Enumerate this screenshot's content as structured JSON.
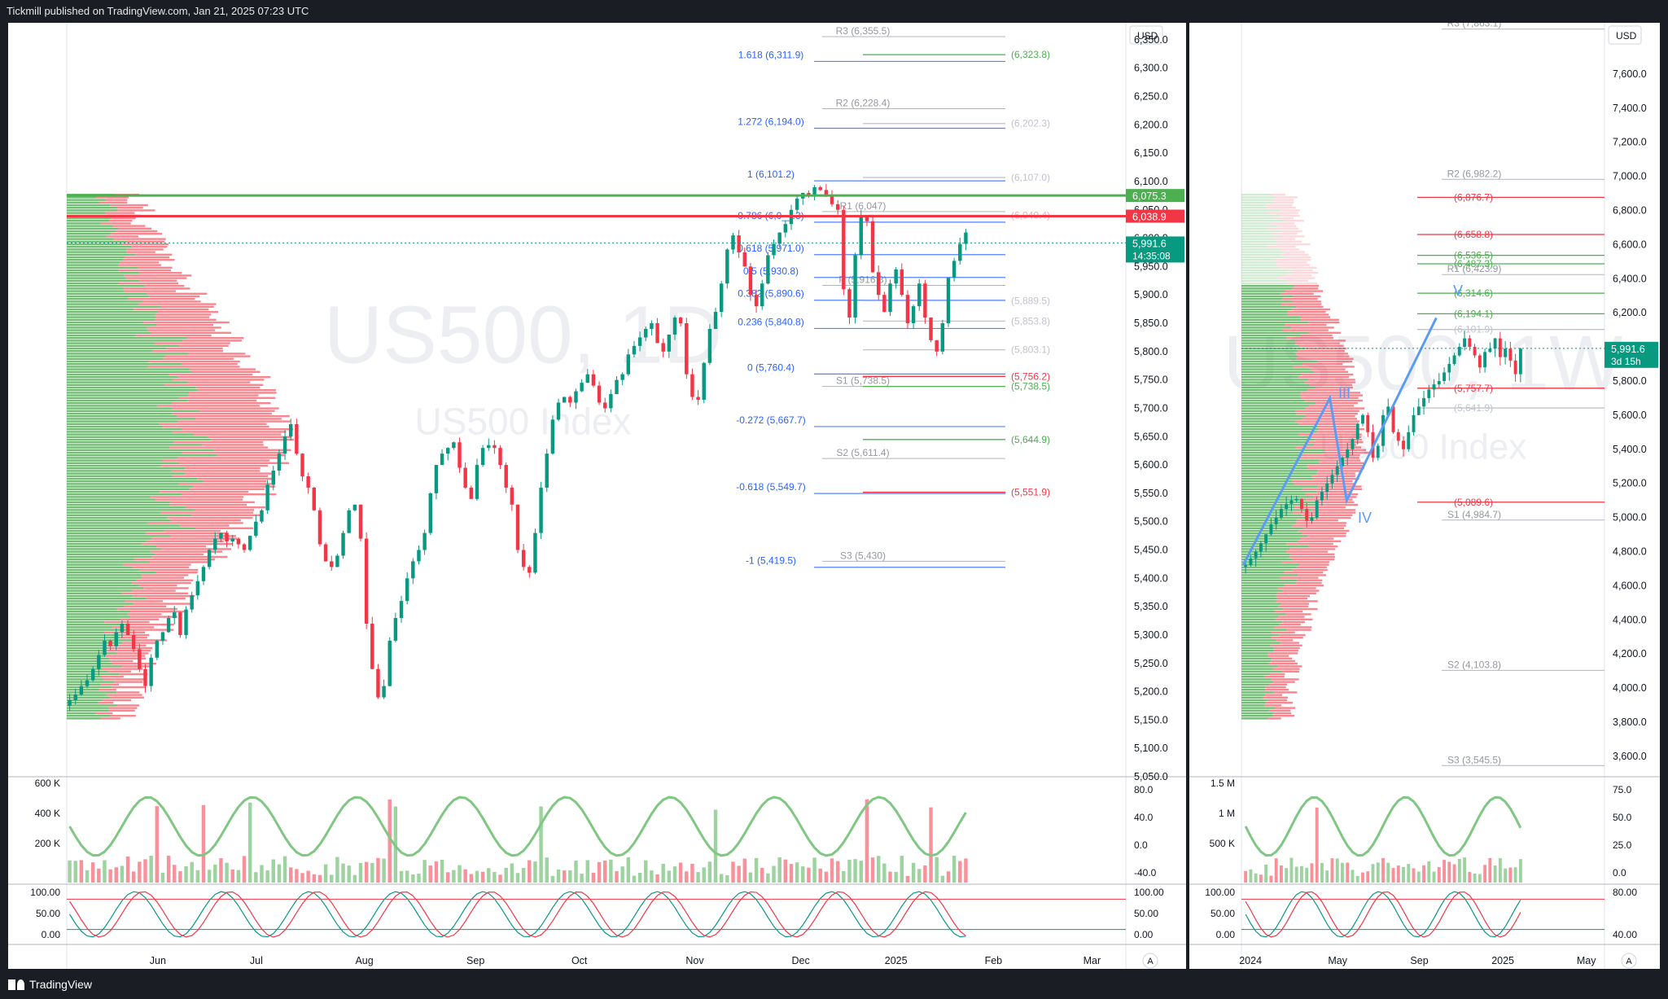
{
  "header": {
    "publisher_line": "Tickmill published on TradingView.com, Jan 21, 2025 07:23 UTC"
  },
  "footer": {
    "brand": "TradingView"
  },
  "colors": {
    "up": "#4caf50",
    "down": "#f23645",
    "fib": "#2962ff",
    "pivot": "#9598a1",
    "green_line": "#089981",
    "red_line": "#f23645",
    "orange": "#ff9800"
  },
  "chart_data": [
    {
      "type": "candlestick",
      "panel": "daily",
      "currency": "USD",
      "watermark": {
        "symbol": "US500, 1D",
        "name": "US500 Index"
      },
      "ylim": [
        5050,
        6380
      ],
      "y_ticks": [
        "6,350.0",
        "6,300.0",
        "6,250.0",
        "6,200.0",
        "6,150.0",
        "6,100.0",
        "6,050.0",
        "6,000.0",
        "5,950.0",
        "5,900.0",
        "5,850.0",
        "5,800.0",
        "5,750.0",
        "5,700.0",
        "5,650.0",
        "5,600.0",
        "5,550.0",
        "5,500.0",
        "5,450.0",
        "5,400.0",
        "5,350.0",
        "5,300.0",
        "5,250.0",
        "5,200.0",
        "5,150.0",
        "5,100.0",
        "5,050.0"
      ],
      "x_labels": [
        "Jun",
        "Jul",
        "Aug",
        "Sep",
        "Oct",
        "Nov",
        "Dec",
        "2025",
        "Feb",
        "Mar"
      ],
      "x_label_pos": [
        0.086,
        0.179,
        0.281,
        0.386,
        0.484,
        0.593,
        0.693,
        0.783,
        0.875,
        0.968
      ],
      "price_tags": [
        {
          "value": 6075.3,
          "label": "6,075.3",
          "color": "#4caf50"
        },
        {
          "value": 6038.9,
          "label": "6,038.9",
          "color": "#f23645"
        },
        {
          "value": 5991.6,
          "label": "5,991.6",
          "sub": "14:35:08",
          "color": "#089981"
        }
      ],
      "fib_levels": [
        {
          "label": "1.618 (6,311.9)",
          "value": 6311.9
        },
        {
          "label": "1.272 (6,194.0)",
          "value": 6194.0
        },
        {
          "label": "1 (6,101.2)",
          "value": 6101.2
        },
        {
          "label": "0.786 (6,0__.3)",
          "value": 6028.3
        },
        {
          "label": "0.618 (5,971.0)",
          "value": 5971.0
        },
        {
          "label": "0.5 (5,930.8)",
          "value": 5930.8
        },
        {
          "label": "0.382 (5,890.6)",
          "value": 5890.6
        },
        {
          "label": "0.236 (5,840.8)",
          "value": 5840.8
        },
        {
          "label": "0 (5,760.4)",
          "value": 5760.4
        },
        {
          "label": "-0.272 (5,667.7)",
          "value": 5667.7
        },
        {
          "label": "-0.618 (5,549.7)",
          "value": 5549.7
        },
        {
          "label": "-1 (5,419.5)",
          "value": 5419.5
        }
      ],
      "pivots": [
        {
          "label": "R3 (6,355.5)",
          "value": 6355.5
        },
        {
          "label": "R2 (6,228.4)",
          "value": 6228.4
        },
        {
          "label": "R1 (6,047)",
          "value": 6047.0
        },
        {
          "label": "P (5,916.8)",
          "value": 5916.8
        },
        {
          "label": "S1 (5,738.5)",
          "value": 5738.5
        },
        {
          "label": "S2 (5,611.4)",
          "value": 5611.4
        },
        {
          "label": "S3 (5,430)",
          "value": 5430.0
        }
      ],
      "right_levels": [
        {
          "label": "(6,323.8)",
          "value": 6323.8,
          "color": "#4caf50"
        },
        {
          "label": "(6,202.3)",
          "value": 6202.3,
          "color": "#c0c3cc"
        },
        {
          "label": "(6,107.0)",
          "value": 6107.0,
          "color": "#c0c3cc"
        },
        {
          "label": "(6,040.4)",
          "value": 6040.4,
          "color": "#f7a9b0"
        },
        {
          "label": "(5,889.5)",
          "value": 5889.5,
          "color": "#c0c3cc"
        },
        {
          "label": "(5,853.8)",
          "value": 5853.8,
          "color": "#c0c3cc"
        },
        {
          "label": "(5,803.1)",
          "value": 5803.1,
          "color": "#c0c3cc"
        },
        {
          "label": "(5,756.2)",
          "value": 5756.2,
          "color": "#f23645"
        },
        {
          "label": "(5,738.5)",
          "value": 5738.5,
          "color": "#4caf50"
        },
        {
          "label": "(5,644.9)",
          "value": 5644.9,
          "color": "#4caf50"
        },
        {
          "label": "(5,551.9)",
          "value": 5551.9,
          "color": "#f23645"
        }
      ],
      "candles_close": [
        5185,
        5195,
        5210,
        5220,
        5240,
        5265,
        5290,
        5280,
        5305,
        5320,
        5300,
        5275,
        5240,
        5210,
        5260,
        5290,
        5305,
        5330,
        5340,
        5300,
        5345,
        5370,
        5395,
        5420,
        5450,
        5470,
        5480,
        5465,
        5470,
        5460,
        5450,
        5475,
        5500,
        5520,
        5565,
        5590,
        5620,
        5650,
        5672,
        5620,
        5580,
        5560,
        5520,
        5460,
        5430,
        5420,
        5440,
        5480,
        5520,
        5530,
        5470,
        5320,
        5240,
        5190,
        5210,
        5290,
        5330,
        5360,
        5400,
        5430,
        5450,
        5480,
        5550,
        5600,
        5620,
        5630,
        5640,
        5595,
        5560,
        5540,
        5600,
        5630,
        5635,
        5630,
        5600,
        5560,
        5530,
        5450,
        5420,
        5410,
        5480,
        5560,
        5620,
        5680,
        5710,
        5720,
        5710,
        5730,
        5745,
        5760,
        5740,
        5710,
        5700,
        5725,
        5750,
        5760,
        5795,
        5810,
        5825,
        5840,
        5850,
        5815,
        5800,
        5830,
        5860,
        5850,
        5760,
        5720,
        5715,
        5780,
        5840,
        5870,
        5920,
        5980,
        6005,
        5975,
        5950,
        5900,
        5880,
        5920,
        5970,
        5990,
        6010,
        6025,
        6050,
        6070,
        6080,
        6075,
        6090,
        6085,
        6075,
        6060,
        6050,
        5910,
        5860,
        5970,
        6040,
        6030,
        5940,
        5900,
        5870,
        5920,
        5945,
        5900,
        5850,
        5880,
        5920,
        5860,
        5820,
        5800,
        5850,
        5930,
        5960,
        5990,
        6010
      ],
      "volume_panel": {
        "y_ticks": [
          "600 K",
          "400 K",
          "200 K"
        ],
        "rsi_ticks": [
          "80.0",
          "40.0",
          "0.0",
          "-40.0"
        ]
      },
      "stoch_panel": {
        "y_ticks_left": [
          "100.00",
          "50.00",
          "0.00"
        ],
        "y_ticks_right": [
          "100.00",
          "50.00",
          "0.00"
        ]
      }
    },
    {
      "type": "candlestick",
      "panel": "weekly",
      "currency": "USD",
      "watermark": {
        "symbol": "US500, 1W",
        "name": "US500 Index"
      },
      "ylim": [
        3480,
        7900
      ],
      "y_ticks": [
        "7,600.0",
        "7,400.0",
        "7,200.0",
        "7,000.0",
        "6,800.0",
        "6,600.0",
        "6,400.0",
        "6,200.0",
        "6,000.0",
        "5,800.0",
        "5,600.0",
        "5,400.0",
        "5,200.0",
        "5,000.0",
        "4,800.0",
        "4,600.0",
        "4,400.0",
        "4,200.0",
        "4,000.0",
        "3,800.0",
        "3,600.0"
      ],
      "x_labels": [
        "2024",
        "May",
        "Sep",
        "2025",
        "May"
      ],
      "x_label_pos": [
        0.025,
        0.265,
        0.49,
        0.72,
        0.95
      ],
      "price_tags": [
        {
          "value": 5991.6,
          "label": "5,991.6",
          "sub": "3d 15h",
          "color": "#089981"
        }
      ],
      "pivots": [
        {
          "label": "R3 (7,863.1)",
          "value": 7863.1
        },
        {
          "label": "R2 (6,982.2)",
          "value": 6982.2
        },
        {
          "label": "R1 (6,423.9)",
          "value": 6423.9
        },
        {
          "label": "S1 (4,984.7)",
          "value": 4984.7
        },
        {
          "label": "S2 (4,103.8)",
          "value": 4103.8
        },
        {
          "label": "S3 (3,545.5)",
          "value": 3545.5
        }
      ],
      "right_levels": [
        {
          "label": "(6,876.7)",
          "value": 6876.7,
          "color": "#f23645"
        },
        {
          "label": "(6,658.8)",
          "value": 6658.8,
          "color": "#f23645"
        },
        {
          "label": "(6,536.5)",
          "value": 6536.5,
          "color": "#4caf50"
        },
        {
          "label": "(6,487.3)",
          "value": 6487.3,
          "color": "#4caf50"
        },
        {
          "label": "(6,314.6)",
          "value": 6314.6,
          "color": "#4caf50"
        },
        {
          "label": "(6,194.1)",
          "value": 6194.1,
          "color": "#4caf50"
        },
        {
          "label": "(6,101.9)",
          "value": 6101.9,
          "color": "#c0c3cc"
        },
        {
          "label": "(5,757.7)",
          "value": 5757.7,
          "color": "#f23645"
        },
        {
          "label": "(5,641.9)",
          "value": 5641.9,
          "color": "#c0c3cc"
        },
        {
          "label": "(5,089.6)",
          "value": 5089.6,
          "color": "#f23645"
        }
      ],
      "waves": [
        {
          "label": "III",
          "value": 5700
        },
        {
          "label": "IV",
          "value": 4970
        },
        {
          "label": "V",
          "value": 6300
        }
      ],
      "wave_path": [
        [
          0.0,
          4720
        ],
        [
          0.31,
          5700
        ],
        [
          0.37,
          5100
        ],
        [
          0.69,
          6170
        ]
      ],
      "candles_close": [
        4720,
        4760,
        4800,
        4850,
        4900,
        4960,
        5000,
        5050,
        5080,
        5100,
        5110,
        5050,
        4980,
        5000,
        5100,
        5150,
        5200,
        5250,
        5300,
        5350,
        5400,
        5460,
        5550,
        5600,
        5500,
        5350,
        5420,
        5600,
        5650,
        5500,
        5450,
        5400,
        5500,
        5600,
        5650,
        5700,
        5750,
        5780,
        5800,
        5850,
        5900,
        5950,
        6000,
        6050,
        6000,
        5950,
        5880,
        5970,
        5990,
        6050,
        5940,
        5990,
        5920,
        5840,
        5990
      ],
      "volume_panel": {
        "y_ticks": [
          "1.5 M",
          "1 M",
          "500 K"
        ],
        "rsi_ticks": [
          "75.0",
          "50.0",
          "25.0",
          "0.0"
        ]
      },
      "stoch_panel": {
        "y_ticks_left": [
          "100.00",
          "50.00",
          "0.00"
        ],
        "y_ticks_right": [
          "80.00",
          "40.00"
        ]
      }
    }
  ]
}
